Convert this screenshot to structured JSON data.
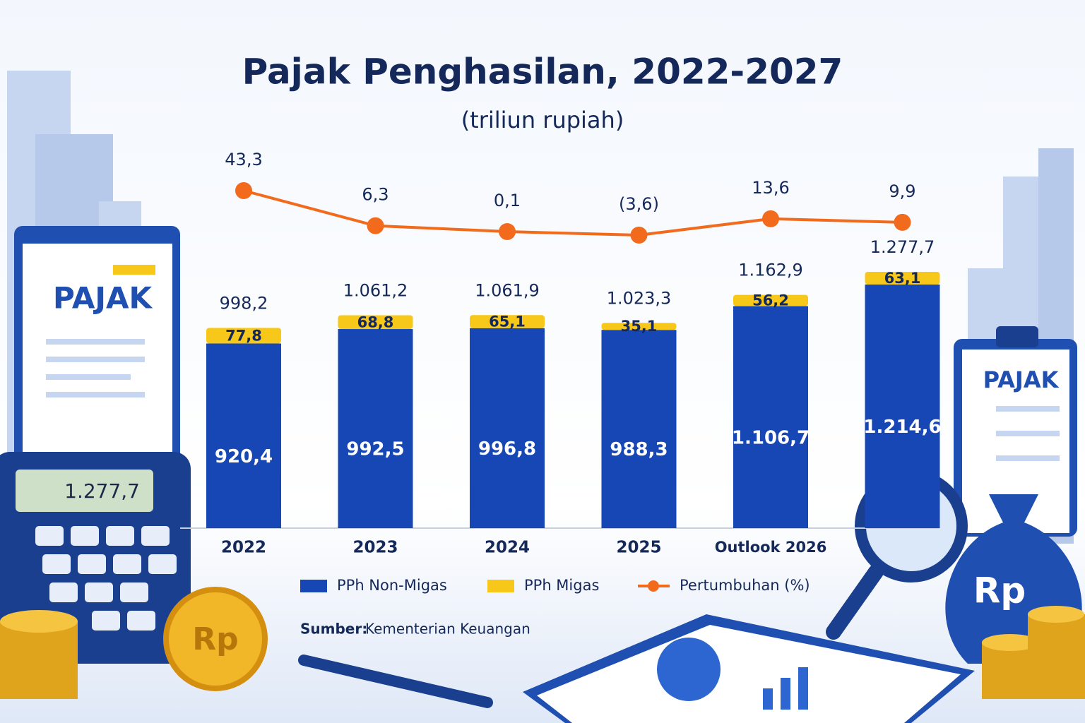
{
  "chart_data": {
    "type": "bar",
    "stacked": true,
    "title": "Pajak Penghasilan, 2022-2027",
    "subtitle": "(triliun rupiah)",
    "categories": [
      "2022",
      "2023",
      "2024",
      "2025",
      "Outlook 2026",
      null
    ],
    "series": [
      {
        "name": "PPh Non-Migas",
        "color": "#1747b5",
        "values": [
          920.4,
          992.5,
          996.8,
          988.3,
          1106.7,
          1214.6
        ],
        "value_labels": [
          "920,4",
          "992,5",
          "996,8",
          "988,3",
          "1.106,7",
          "1.214,6"
        ]
      },
      {
        "name": "PPh Migas",
        "color": "#f7c81a",
        "values": [
          77.8,
          68.8,
          65.1,
          35.1,
          56.2,
          63.1
        ],
        "value_labels": [
          "77,8",
          "68,8",
          "65,1",
          "35,1",
          "56,2",
          "63,1"
        ]
      }
    ],
    "totals": {
      "values": [
        998.2,
        1061.2,
        1061.9,
        1023.3,
        1162.9,
        1277.7
      ],
      "value_labels": [
        "998,2",
        "1.061,2",
        "1.061,9",
        "1.023,3",
        "1.162,9",
        "1.277,7"
      ]
    },
    "line": {
      "name": "Pertumbuhan (%)",
      "color": "#f26a1b",
      "values": [
        43.3,
        6.3,
        0.1,
        -3.6,
        13.6,
        9.9
      ],
      "value_labels": [
        "43,3",
        "6,3",
        "0,1",
        "(3,6)",
        "13,6",
        "9,9"
      ]
    },
    "legend": "bottom"
  },
  "source_label": "Sumber:",
  "source": "Kementerian Keuangan",
  "illustration": {
    "clipboard_left": "PAJAK",
    "clipboard_right": "PAJAK",
    "calculator_display": "1.277,7",
    "coin": "Rp",
    "money_bag": "Rp"
  }
}
